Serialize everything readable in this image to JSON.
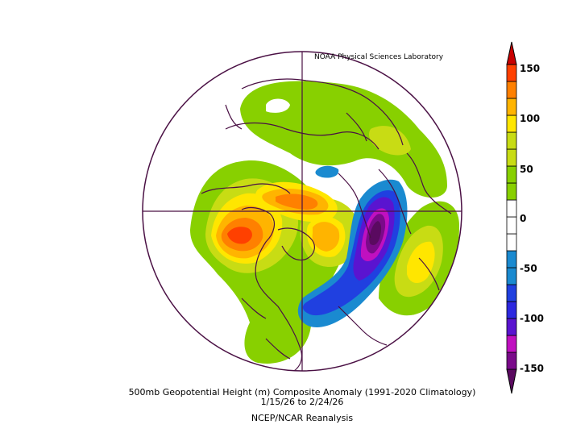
{
  "credit": "NOAA Physical Sciences Laboratory",
  "caption": {
    "line1": "500mb Geopotential Height (m) Composite Anomaly (1991-2020 Climatology)",
    "line2": "1/15/26  to 2/24/26",
    "line3": "NCEP/NCAR Reanalysis"
  },
  "colorbar": {
    "ticks": [
      "150",
      "100",
      "50",
      "0",
      "-50",
      "-100",
      "-150"
    ],
    "colors": [
      "#5a0a60",
      "#7a0a8a",
      "#c010c0",
      "#5a14d0",
      "#2040e0",
      "#1a8ad0",
      "#ffffff",
      "#ffffff",
      "#88d000",
      "#c8dc14",
      "#ffe600",
      "#ffb400",
      "#ff8000",
      "#ff4000",
      "#c80000"
    ]
  }
}
